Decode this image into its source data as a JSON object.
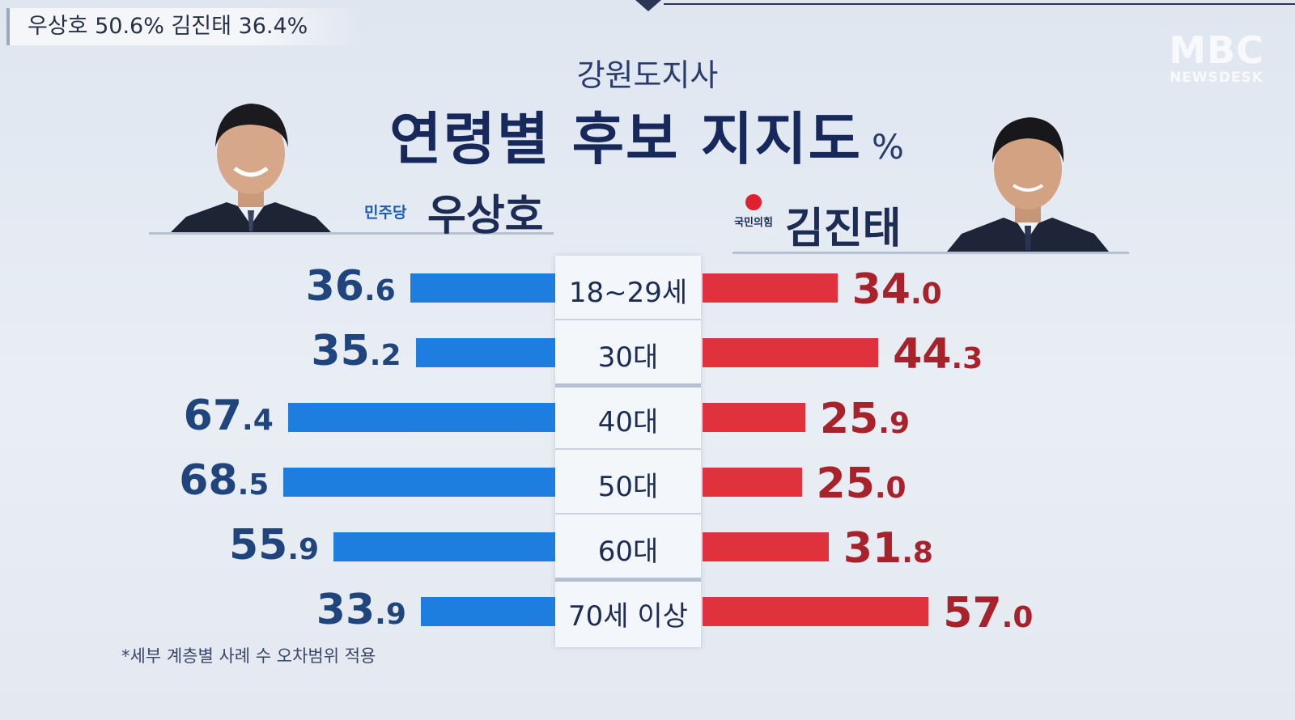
{
  "ticker": "우상호 50.6% 김진태 36.4%",
  "logo": {
    "big": "MBC",
    "small": "NEWSDESK"
  },
  "subtitle": "강원도지사",
  "title": "연령별 후보 지지도",
  "title_unit": "%",
  "candidates": {
    "left": {
      "party": "민주당",
      "name": "우상호"
    },
    "right": {
      "party": "국민의힘",
      "name": "김진태"
    }
  },
  "footnote": "*세부 계층별 사례 수 오차범위 적용",
  "colors": {
    "left_bar": "#1e7ee0",
    "right_bar": "#e0323c"
  },
  "chart_data": {
    "type": "bar",
    "orientation": "diverging-horizontal",
    "categories": [
      "18~29세",
      "30대",
      "40대",
      "50대",
      "60대",
      "70세 이상"
    ],
    "series": [
      {
        "name": "우상호",
        "values": [
          36.6,
          35.2,
          67.4,
          68.5,
          55.9,
          33.9
        ]
      },
      {
        "name": "김진태",
        "values": [
          34.0,
          44.3,
          25.9,
          25.0,
          31.8,
          57.0
        ]
      }
    ],
    "title": "연령별 후보 지지도",
    "unit": "%"
  }
}
